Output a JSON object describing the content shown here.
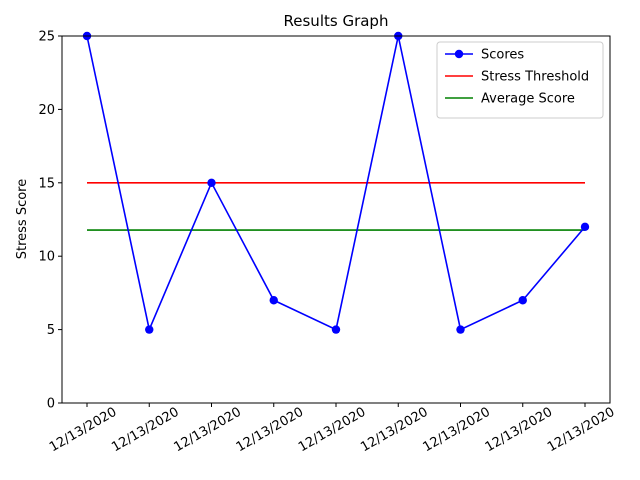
{
  "chart_data": {
    "type": "line",
    "title": "Results Graph",
    "xlabel": "",
    "ylabel": "Stress Score",
    "categories": [
      "12/13/2020",
      "12/13/2020",
      "12/13/2020",
      "12/13/2020",
      "12/13/2020",
      "12/13/2020",
      "12/13/2020",
      "12/13/2020",
      "12/13/2020"
    ],
    "ylim": [
      0,
      25
    ],
    "yticks": [
      0,
      5,
      10,
      15,
      20,
      25
    ],
    "grid": false,
    "legend_position": "top-right",
    "series": [
      {
        "name": "Scores",
        "values": [
          25,
          5,
          15,
          7,
          5,
          25,
          5,
          7,
          12
        ],
        "color": "#0000ff",
        "markers": true
      },
      {
        "name": "Stress Threshold",
        "values": [
          15,
          15,
          15,
          15,
          15,
          15,
          15,
          15,
          15
        ],
        "color": "#ff0000",
        "markers": false
      },
      {
        "name": "Average Score",
        "values": [
          11.78,
          11.78,
          11.78,
          11.78,
          11.78,
          11.78,
          11.78,
          11.78,
          11.78
        ],
        "color": "#008000",
        "markers": false
      }
    ]
  }
}
